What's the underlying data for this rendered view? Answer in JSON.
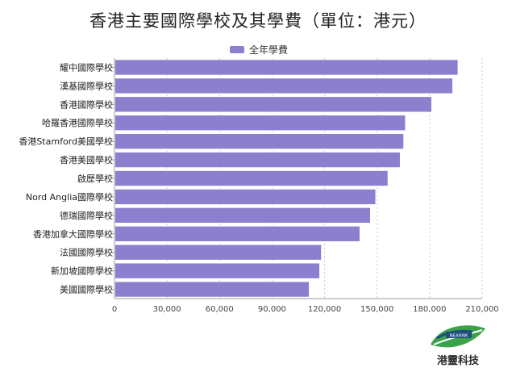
{
  "page": {
    "logo_text": "港靈科技",
    "logo_badge": "NEARNK"
  },
  "colors": {
    "bar": "#8b7fce",
    "grid": "#cccccc",
    "axis": "#999999",
    "logo_green": "#3aa34a",
    "logo_dark": "#1f4e7a"
  },
  "chart_data": {
    "type": "bar",
    "orientation": "horizontal",
    "title": "香港主要國際學校及其學費（單位：港元）",
    "legend_position": "top-center",
    "grid": true,
    "categories": [
      "耀中國際學校",
      "漢基國際學校",
      "香港國際學校",
      "哈羅香港國際學校",
      "香港Stamford美國學校",
      "香港美國學校",
      "啟歷學校",
      "Nord Anglia國際學校",
      "德瑞國際學校",
      "香港加拿大國際學校",
      "法國國際學校",
      "新加坡國際學校",
      "美國國際學校"
    ],
    "series": [
      {
        "name": "全年學費",
        "values": [
          196000,
          193000,
          181000,
          166000,
          165000,
          163000,
          156000,
          149000,
          146000,
          140000,
          118000,
          117000,
          111000
        ]
      }
    ],
    "xlim": [
      0,
      210000
    ],
    "x_ticks": [
      "0",
      "30,000",
      "60,000",
      "90,000",
      "120,000",
      "150,000",
      "180,000",
      "210,000"
    ],
    "x_tick_values": [
      0,
      30000,
      60000,
      90000,
      120000,
      150000,
      180000,
      210000
    ]
  }
}
